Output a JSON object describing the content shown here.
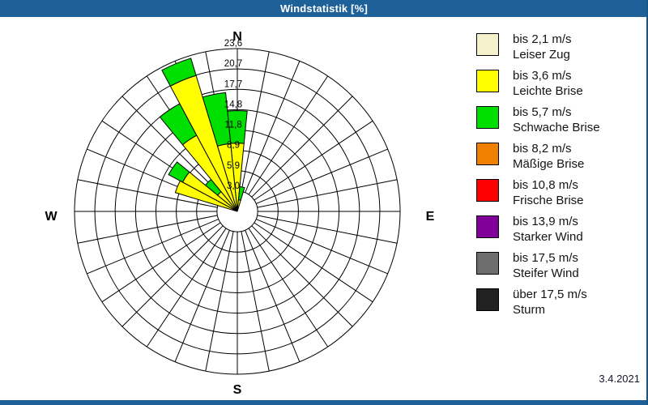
{
  "window": {
    "title": "Windstatistik [%]",
    "date": "3.4.2021"
  },
  "colors": {
    "titlebar": "#1E6199",
    "grid": "#000000",
    "background": "#FFFFFF"
  },
  "chart_data": {
    "type": "windrose",
    "title": "Windstatistik [%]",
    "unit": "%",
    "sector_count": 32,
    "bar_width_deg": 11.25,
    "grid": {
      "rings": 8,
      "spokes": 32,
      "spokes_start_at_first_ring": true
    },
    "radial_axis": {
      "max": 23.6,
      "tick_labels": [
        "3,0",
        "5,9",
        "8,9",
        "11,8",
        "14,8",
        "17,7",
        "20,7",
        "23,6"
      ]
    },
    "compass": {
      "n": "N",
      "e": "E",
      "s": "S",
      "w": "W"
    },
    "speed_classes": [
      {
        "speed": "bis 2,1 m/s",
        "name": "Leiser Zug",
        "color": "#F6F2CD"
      },
      {
        "speed": "bis 3,6 m/s",
        "name": "Leichte Brise",
        "color": "#FFFF00"
      },
      {
        "speed": "bis 5,7 m/s",
        "name": "Schwache Brise",
        "color": "#00E000"
      },
      {
        "speed": "bis 8,2 m/s",
        "name": "Mäßige Brise",
        "color": "#F08000"
      },
      {
        "speed": "bis 10,8 m/s",
        "name": "Frische Brise",
        "color": "#FF0000"
      },
      {
        "speed": "bis 13,9 m/s",
        "name": "Starker Wind",
        "color": "#800099"
      },
      {
        "speed": "bis 17,5 m/s",
        "name": "Steifer Wind",
        "color": "#6E6E6E"
      },
      {
        "speed": "über 17,5 m/s",
        "name": "Sturm",
        "color": "#212121"
      }
    ],
    "bars": [
      {
        "direction_deg": 0,
        "values_by_class": [
          0,
          9.9,
          4.7,
          0,
          0,
          0,
          0,
          0
        ]
      },
      {
        "direction_deg": 11.25,
        "values_by_class": [
          0,
          1.7,
          1.9,
          0,
          0,
          0,
          0,
          0
        ]
      },
      {
        "direction_deg": 292.5,
        "values_by_class": [
          0,
          9.4,
          0,
          0,
          0,
          0,
          0,
          0
        ]
      },
      {
        "direction_deg": 303.75,
        "values_by_class": [
          0,
          9.0,
          2.3,
          0,
          0,
          0,
          0,
          0
        ]
      },
      {
        "direction_deg": 315,
        "values_by_class": [
          0,
          3.7,
          2.3,
          0,
          0,
          0,
          0,
          0
        ]
      },
      {
        "direction_deg": 326.25,
        "values_by_class": [
          0,
          12.5,
          5.2,
          0,
          0,
          0,
          0,
          0
        ]
      },
      {
        "direction_deg": 337.5,
        "values_by_class": [
          0,
          20.6,
          2.6,
          0,
          0,
          0,
          0,
          0
        ]
      },
      {
        "direction_deg": 348.75,
        "values_by_class": [
          0,
          9.9,
          7.4,
          0,
          0,
          0,
          0,
          0
        ]
      }
    ]
  }
}
